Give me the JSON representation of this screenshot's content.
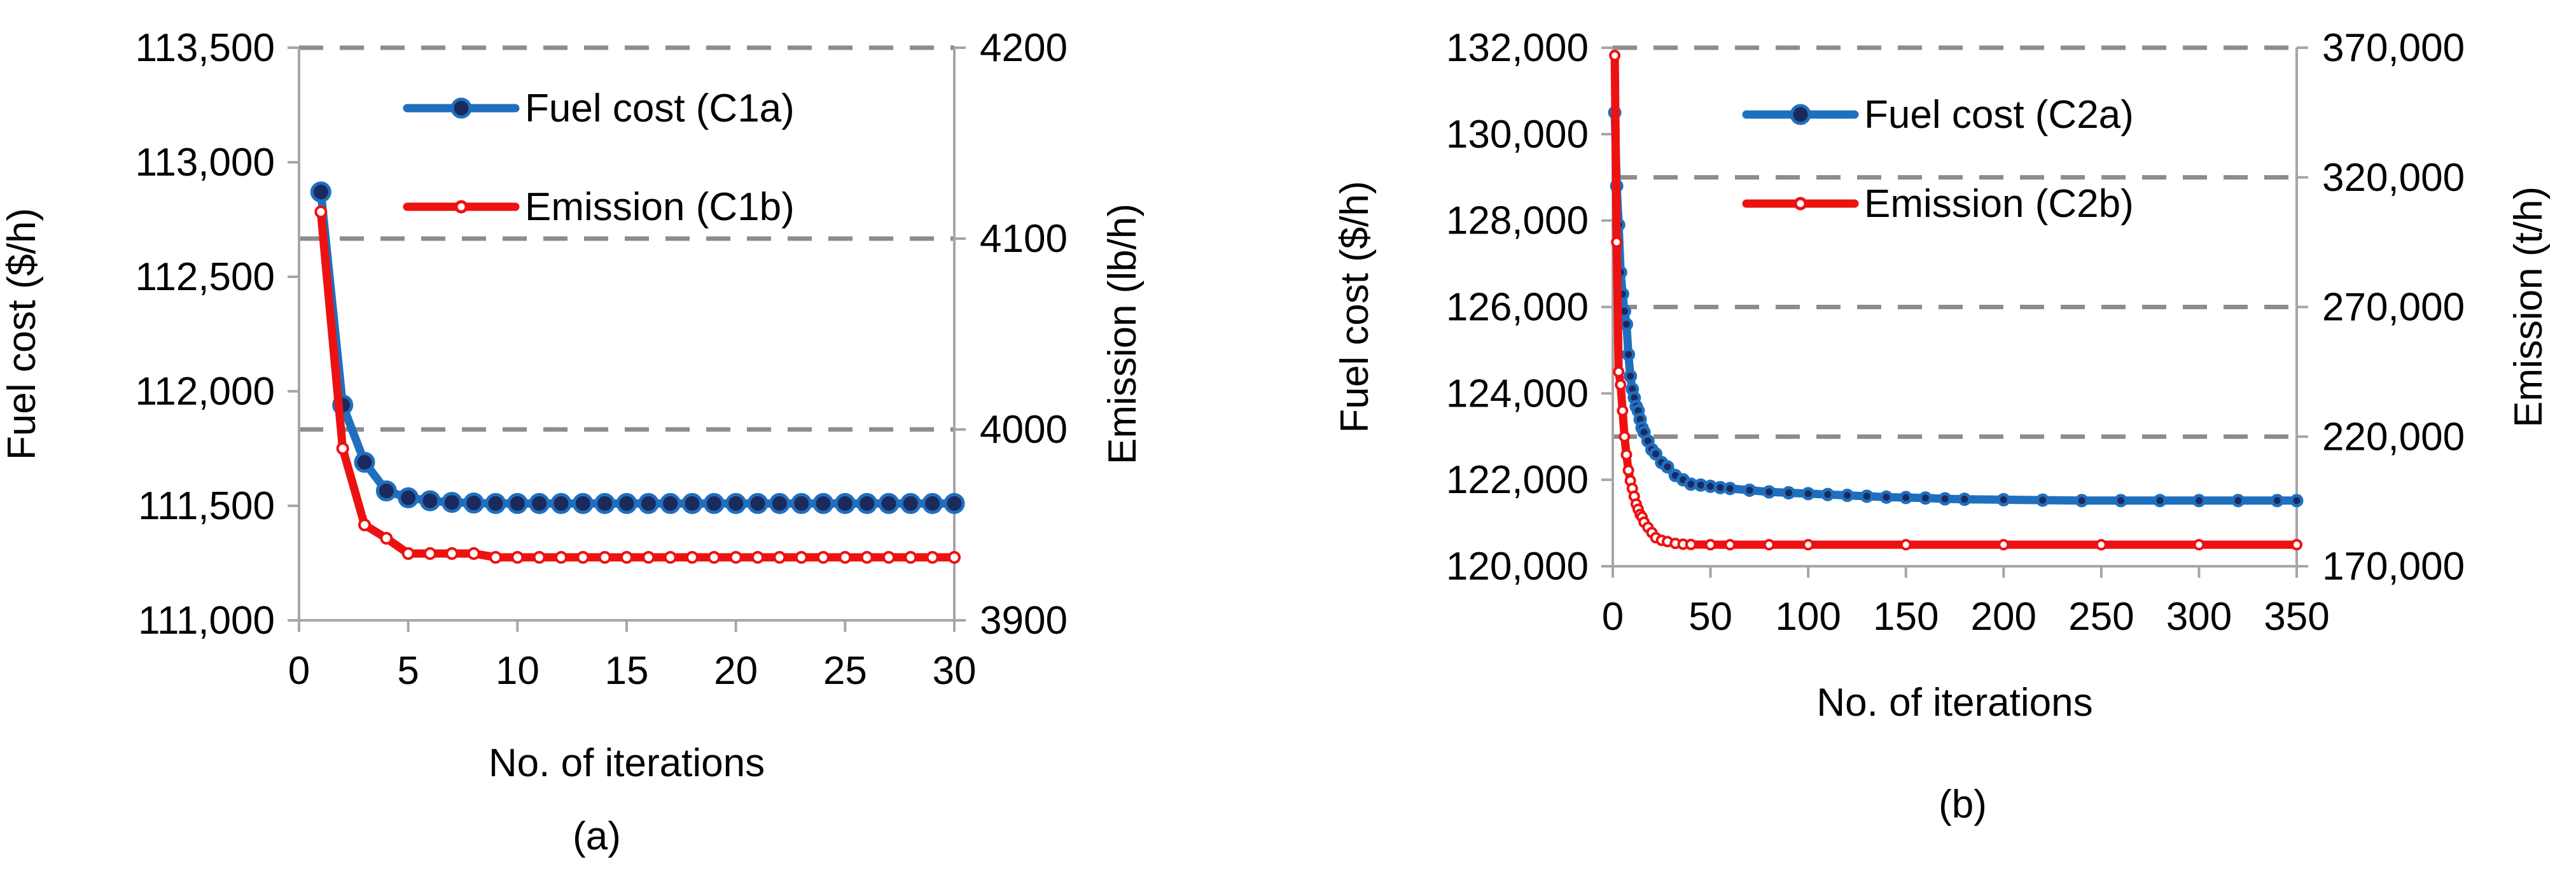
{
  "chart_data": [
    {
      "id": "a",
      "type": "line",
      "panel_label": "(a)",
      "xlabel": "No. of iterations",
      "ylabel_left": "Fuel cost ($/h)",
      "ylabel_right": "Emission (lb/h)",
      "xlim": [
        0,
        30
      ],
      "ylim_left": [
        111000,
        113500
      ],
      "ylim_right": [
        3900,
        4200
      ],
      "x_ticks": [
        "0",
        "5",
        "10",
        "15",
        "20",
        "25",
        "30"
      ],
      "y_ticks_left": [
        "111,000",
        "111,500",
        "112,000",
        "112,500",
        "113,000",
        "113,500"
      ],
      "y_ticks_right": [
        "3900",
        "4000",
        "4100",
        "4200"
      ],
      "legend_position": "top-center",
      "series": [
        {
          "name": "Fuel cost (C1a)",
          "axis": "left",
          "color": "#1f6fbf",
          "marker_fill": "#1b2a5c",
          "x": [
            1,
            2,
            3,
            4,
            5,
            6,
            7,
            8,
            9,
            10,
            11,
            12,
            13,
            14,
            15,
            16,
            17,
            18,
            19,
            20,
            21,
            22,
            23,
            24,
            25,
            26,
            27,
            28,
            29,
            30
          ],
          "values": [
            112870,
            111940,
            111690,
            111565,
            111535,
            111522,
            111515,
            111512,
            111510,
            111510,
            111510,
            111510,
            111510,
            111510,
            111510,
            111510,
            111510,
            111510,
            111510,
            111510,
            111510,
            111510,
            111510,
            111510,
            111510,
            111510,
            111510,
            111510,
            111510,
            111510
          ]
        },
        {
          "name": "Emission (C1b)",
          "axis": "right",
          "color": "#ee1111",
          "marker_fill": "#ffffff",
          "x": [
            1,
            2,
            3,
            4,
            5,
            6,
            7,
            8,
            9,
            10,
            11,
            12,
            13,
            14,
            15,
            16,
            17,
            18,
            19,
            20,
            21,
            22,
            23,
            24,
            25,
            26,
            27,
            28,
            29,
            30
          ],
          "values": [
            4114,
            3990,
            3950,
            3943,
            3935,
            3935,
            3935,
            3935,
            3933,
            3933,
            3933,
            3933,
            3933,
            3933,
            3933,
            3933,
            3933,
            3933,
            3933,
            3933,
            3933,
            3933,
            3933,
            3933,
            3933,
            3933,
            3933,
            3933,
            3933,
            3933
          ]
        }
      ]
    },
    {
      "id": "b",
      "type": "line",
      "panel_label": "(b)",
      "xlabel": "No. of iterations",
      "ylabel_left": "Fuel cost ($/h)",
      "ylabel_right": "Emission (t/h)",
      "xlim": [
        0,
        350
      ],
      "ylim_left": [
        120000,
        132000
      ],
      "ylim_right": [
        170000,
        370000
      ],
      "x_ticks": [
        "0",
        "50",
        "100",
        "150",
        "200",
        "250",
        "300",
        "350"
      ],
      "y_ticks_left": [
        "120,000",
        "122,000",
        "124,000",
        "126,000",
        "128,000",
        "130,000",
        "132,000"
      ],
      "y_ticks_right": [
        "170,000",
        "220,000",
        "270,000",
        "320,000",
        "370,000"
      ],
      "legend_position": "top-center",
      "series": [
        {
          "name": "Fuel cost (C2a)",
          "axis": "left",
          "color": "#1f6fbf",
          "marker_fill": "#1b2a5c",
          "x": [
            1,
            2,
            3,
            4,
            5,
            6,
            7,
            8,
            9,
            10,
            11,
            12,
            13,
            14,
            15,
            16,
            18,
            20,
            22,
            25,
            28,
            32,
            36,
            40,
            45,
            50,
            55,
            60,
            70,
            80,
            90,
            100,
            110,
            120,
            130,
            140,
            150,
            160,
            170,
            180,
            200,
            220,
            240,
            260,
            280,
            300,
            320,
            340,
            350
          ],
          "values": [
            130500,
            128800,
            127900,
            126800,
            126300,
            125900,
            125600,
            124900,
            124400,
            124100,
            123900,
            123700,
            123600,
            123400,
            123200,
            123100,
            122900,
            122700,
            122600,
            122400,
            122300,
            122100,
            122000,
            121900,
            121880,
            121850,
            121820,
            121800,
            121760,
            121720,
            121700,
            121680,
            121660,
            121640,
            121620,
            121600,
            121590,
            121580,
            121560,
            121550,
            121540,
            121530,
            121520,
            121520,
            121520,
            121520,
            121520,
            121520,
            121520
          ]
        },
        {
          "name": "Emission (C2b)",
          "axis": "right",
          "color": "#ee1111",
          "marker_fill": "#ffffff",
          "x": [
            1,
            2,
            3,
            4,
            5,
            6,
            7,
            8,
            9,
            10,
            11,
            12,
            13,
            14,
            15,
            16,
            18,
            20,
            22,
            25,
            28,
            32,
            36,
            40,
            50,
            60,
            80,
            100,
            150,
            200,
            250,
            300,
            350
          ],
          "values": [
            367000,
            295000,
            245000,
            240000,
            230000,
            220000,
            213000,
            207000,
            203000,
            200000,
            197000,
            194000,
            192000,
            190000,
            189000,
            187000,
            185000,
            183000,
            181000,
            180000,
            179500,
            178800,
            178500,
            178400,
            178300,
            178300,
            178300,
            178300,
            178300,
            178300,
            178300,
            178300,
            178300
          ]
        }
      ]
    }
  ]
}
